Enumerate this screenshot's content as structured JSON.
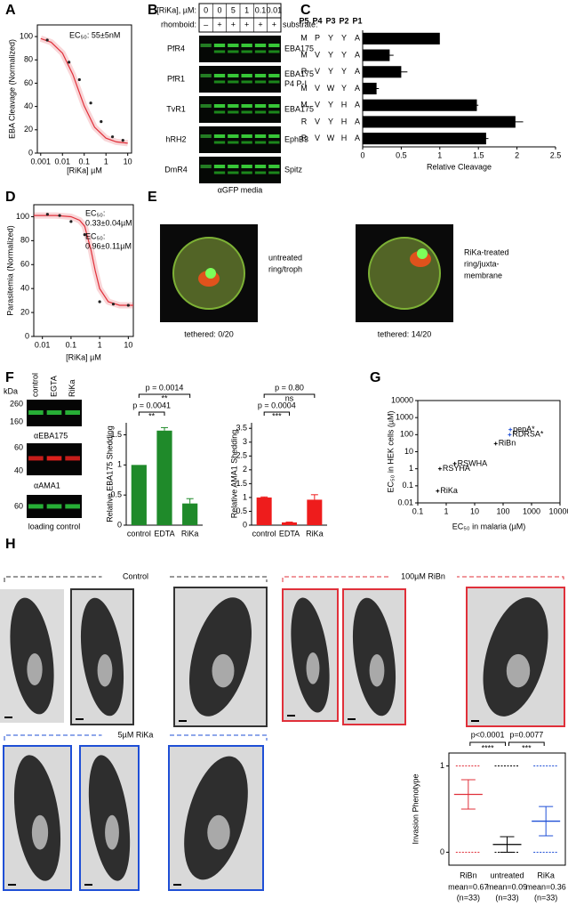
{
  "panel_labels": [
    "A",
    "B",
    "C",
    "D",
    "E",
    "F",
    "G",
    "H"
  ],
  "blot_B": {
    "conc_label": "[RiKa], µM:",
    "conc": [
      "0",
      "0",
      "5",
      "1",
      "0.1",
      "0.01"
    ],
    "rhomboid_label": "rhomboid:",
    "rhomboid": [
      "–",
      "+",
      "+",
      "+",
      "+",
      "+"
    ],
    "substrate_label": "substrate:",
    "rows": [
      {
        "enzyme": "PfR4",
        "substrate": [
          "EBA175"
        ]
      },
      {
        "enzyme": "PfR1",
        "substrate": [
          "EBA175",
          "P4 P-I"
        ]
      },
      {
        "enzyme": "TvR1",
        "substrate": [
          "EBA175"
        ]
      },
      {
        "enzyme": "hRH2",
        "substrate": [
          "EphB3"
        ]
      },
      {
        "enzyme": "DmR4",
        "substrate": [
          "Spitz"
        ]
      }
    ],
    "caption": "αGFP media"
  },
  "images_E": [
    {
      "caption": [
        "untreated",
        "ring/troph"
      ],
      "tethered": "tethered: 0/20"
    },
    {
      "caption": [
        "RiKa-treated",
        "ring/juxta-",
        "membrane"
      ],
      "tethered": "tethered: 14/20"
    }
  ],
  "blot_F": {
    "unit": "kDa",
    "lanes": [
      "control",
      "EGTA",
      "RiKa"
    ],
    "blots": [
      {
        "markers": [
          "260",
          "160"
        ],
        "caption": "αEBA175",
        "color": "#2ecc40"
      },
      {
        "markers": [
          "60",
          "40"
        ],
        "caption": "αAMA1",
        "color": "#e8221e"
      },
      {
        "markers": [
          "60"
        ],
        "caption": "loading control",
        "color": "#2ecc40"
      }
    ]
  },
  "images_H": {
    "control": "Control",
    "ribn": "100µM RiBn",
    "rika": "5µM RiKa"
  },
  "chart_data": [
    {
      "type": "line",
      "annotation": "EC₅₀: 55±5nM",
      "xlabel": "[RiKa] µM",
      "ylabel": "EBA Cleavage (Normalized)",
      "xscale": "log",
      "xlim": [
        0.0007,
        15
      ],
      "xticks": [
        0.001,
        0.01,
        0.1,
        1,
        10
      ],
      "ylim": [
        0,
        110
      ],
      "yticks": [
        0,
        20,
        40,
        60,
        80,
        100
      ],
      "color": "#e0303a",
      "points": {
        "x": [
          0.002,
          0.02,
          0.06,
          0.2,
          0.6,
          2,
          6
        ],
        "values": [
          97,
          78,
          63,
          43,
          27,
          14,
          11
        ]
      },
      "fit": {
        "x": [
          0.001,
          0.003,
          0.01,
          0.03,
          0.1,
          0.3,
          1,
          3,
          10
        ],
        "values": [
          98.3,
          95.2,
          85.8,
          67.5,
          40.6,
          22.2,
          12.8,
          9.6,
          8.5
        ]
      }
    },
    {
      "type": "hbar",
      "positions": [
        "P5",
        "P4",
        "P3",
        "P2",
        "P1"
      ],
      "rows": [
        {
          "residues": [
            "M",
            "P",
            "Y",
            "Y",
            "A"
          ],
          "colors": [
            "#000",
            "#000",
            "#000",
            "#000",
            "#000"
          ]
        },
        {
          "residues": [
            "M",
            "V",
            "Y",
            "Y",
            "A"
          ],
          "colors": [
            "#000",
            "#d62728",
            "#000",
            "#000",
            "#000"
          ]
        },
        {
          "residues": [
            "R",
            "V",
            "Y",
            "Y",
            "A"
          ],
          "colors": [
            "#d62728",
            "#d62728",
            "#000",
            "#000",
            "#000"
          ]
        },
        {
          "residues": [
            "M",
            "V",
            "W",
            "Y",
            "A"
          ],
          "colors": [
            "#000",
            "#d62728",
            "#d62728",
            "#000",
            "#000"
          ]
        },
        {
          "residues": [
            "M",
            "V",
            "Y",
            "H",
            "A"
          ],
          "colors": [
            "#000",
            "#d62728",
            "#000",
            "#d62728",
            "#000"
          ]
        },
        {
          "residues": [
            "R",
            "V",
            "Y",
            "H",
            "A"
          ],
          "colors": [
            "#d62728",
            "#d62728",
            "#000",
            "#d62728",
            "#000"
          ]
        },
        {
          "residues": [
            "R",
            "V",
            "W",
            "H",
            "A"
          ],
          "colors": [
            "#d62728",
            "#d62728",
            "#d62728",
            "#d62728",
            "#000"
          ]
        }
      ],
      "values": [
        1.0,
        0.35,
        0.5,
        0.18,
        1.48,
        1.98,
        1.6
      ],
      "errors": [
        0,
        0.05,
        0.08,
        0.03,
        0.02,
        0.1,
        0.03
      ],
      "color": "#000000",
      "xlabel": "Relative Cleavage",
      "xlim": [
        0,
        2.5
      ],
      "xticks": [
        0,
        0.5,
        1,
        1.5,
        2,
        2.5
      ]
    },
    {
      "type": "line",
      "annotations": [
        {
          "lines": [
            "EC₅₀:",
            "0.33±0.04µM"
          ],
          "color": "#000000"
        },
        {
          "lines": [
            "EC₅₀:",
            "0.96±0.11µM"
          ],
          "color": "#e0303a"
        }
      ],
      "xlabel": "[RiKa] µM",
      "ylabel": "Parasitemia (Normalized)",
      "xscale": "log",
      "xlim": [
        0.005,
        15
      ],
      "xticks": [
        0.01,
        0.1,
        1,
        10
      ],
      "ylim": [
        0,
        110
      ],
      "yticks": [
        0,
        20,
        40,
        60,
        80,
        100
      ],
      "color": "#e0303a",
      "points": {
        "x": [
          0.015,
          0.04,
          0.1,
          0.3,
          1,
          3,
          10
        ],
        "values": [
          102,
          101,
          96,
          85,
          29,
          27,
          26
        ]
      },
      "fit": {
        "x": [
          0.005,
          0.01,
          0.03,
          0.1,
          0.2,
          0.3,
          0.5,
          0.7,
          1,
          2,
          5,
          15
        ],
        "values": [
          101,
          101,
          101,
          100,
          97,
          92,
          72,
          55,
          40,
          29,
          26,
          26
        ]
      }
    },
    {
      "type": "bar",
      "ylabel": "Relative EBA175 Shedding",
      "categories": [
        "control",
        "EDTA",
        "RiKa"
      ],
      "values": [
        1,
        1.57,
        0.36
      ],
      "errors": [
        0,
        0.05,
        0.08
      ],
      "color": "#1f8a2a",
      "ylim": [
        0,
        1.7
      ],
      "yticks": [
        0,
        0.5,
        1,
        1.5
      ],
      "comparisons": [
        {
          "p": "p = 0.0014",
          "stars": "**"
        },
        {
          "p": "p = 0.0041",
          "stars": "**"
        }
      ]
    },
    {
      "type": "bar",
      "ylabel": "Relative AMA1 Shedding",
      "categories": [
        "control",
        "EDTA",
        "RiKa"
      ],
      "values": [
        1,
        0.1,
        0.92
      ],
      "errors": [
        0.02,
        0.01,
        0.18
      ],
      "color": "#ee1c1c",
      "ylim": [
        0,
        3.7
      ],
      "yticks": [
        0,
        0.5,
        1,
        1.5,
        2,
        2.5,
        3,
        3.5
      ],
      "comparisons": [
        {
          "p": "p = 0.80",
          "stars": "ns"
        },
        {
          "p": "p = 0.0004",
          "stars": "***"
        }
      ]
    },
    {
      "type": "scatter",
      "xlabel": "EC₅₀ in malaria (µM)",
      "ylabel": "EC₅₀ in HEK cells (µM)",
      "xscale": "log",
      "yscale": "log",
      "xlim": [
        0.1,
        10000
      ],
      "xticks": [
        0.1,
        1,
        10,
        100,
        1000,
        10000
      ],
      "ylim": [
        0.01,
        10000
      ],
      "yticks": [
        0.01,
        0.1,
        1,
        10,
        100,
        1000,
        10000
      ],
      "points": [
        {
          "label": "RiKa",
          "x": 0.5,
          "y": 0.05,
          "color": "#000000"
        },
        {
          "label": "RSYHA",
          "x": 0.6,
          "y": 1,
          "color": "#000000"
        },
        {
          "label": "RSWHA",
          "x": 2,
          "y": 2,
          "color": "#000000"
        },
        {
          "label": "RiBn",
          "x": 55,
          "y": 30,
          "color": "#000000"
        },
        {
          "label": "pepA*",
          "x": 180,
          "y": 200,
          "color": "#1f4fd6"
        },
        {
          "label": "RDRSA*",
          "x": 170,
          "y": 100,
          "color": "#1f4fd6"
        }
      ]
    },
    {
      "type": "dot",
      "ylabel": "Invasion Phenotype",
      "ylim": [
        -0.15,
        1.15
      ],
      "yticks": [
        0,
        1
      ],
      "series": [
        {
          "name": "RiBn",
          "color": "#e0303a",
          "mean": 0.67,
          "ci": [
            0.5,
            0.84
          ],
          "levels": [
            0,
            1
          ],
          "mean_label": "mean=0.67",
          "n_label": "(n=33)"
        },
        {
          "name": "untreated",
          "color": "#000000",
          "mean": 0.09,
          "ci": [
            0,
            0.18
          ],
          "levels": [
            0,
            1
          ],
          "mean_label": "mean=0.09",
          "n_label": "(n=33)"
        },
        {
          "name": "RiKa",
          "color": "#1f4fd6",
          "mean": 0.36,
          "ci": [
            0.19,
            0.53
          ],
          "levels": [
            0,
            1
          ],
          "mean_label": "mean=0.36",
          "n_label": "(n=33)"
        }
      ],
      "comparisons": [
        {
          "p": "p<0.0001",
          "stars": "****"
        },
        {
          "p": "p=0.0077",
          "stars": "***"
        }
      ]
    }
  ]
}
